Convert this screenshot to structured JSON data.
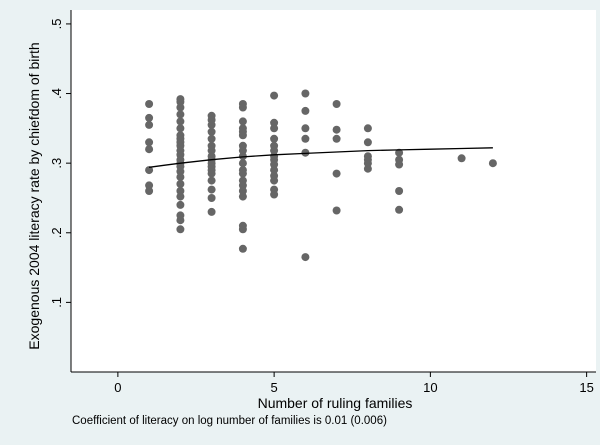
{
  "chart_data": {
    "type": "scatter",
    "xlabel": "Number of ruling families",
    "ylabel": "Exogenous 2004 literacy rate by chiefdom of birth",
    "xlim": [
      -1.5,
      15.3
    ],
    "ylim": [
      0,
      0.52
    ],
    "xticks": [
      0,
      5,
      10,
      15
    ],
    "yticks": [
      0.1,
      0.2,
      0.3,
      0.4,
      0.5
    ],
    "xtick_labels": [
      "0",
      "5",
      "10",
      "15"
    ],
    "ytick_labels": [
      ".1",
      ".2",
      ".3",
      ".4",
      ".5"
    ],
    "grid": false,
    "point_color": "#666666",
    "line_color": "#000000",
    "background_outer": "#eaf2f3",
    "background_plot": "#ffffff",
    "note": "Coefficient of literacy on log number of families is 0.01 (0.006)",
    "series": [
      {
        "type": "scatter",
        "points": [
          [
            1,
            0.385
          ],
          [
            1,
            0.365
          ],
          [
            1,
            0.355
          ],
          [
            1,
            0.33
          ],
          [
            1,
            0.32
          ],
          [
            1,
            0.29
          ],
          [
            1,
            0.268
          ],
          [
            1,
            0.26
          ],
          [
            2,
            0.392
          ],
          [
            2,
            0.388
          ],
          [
            2,
            0.38
          ],
          [
            2,
            0.37
          ],
          [
            2,
            0.36
          ],
          [
            2,
            0.35
          ],
          [
            2,
            0.34
          ],
          [
            2,
            0.335
          ],
          [
            2,
            0.33
          ],
          [
            2,
            0.325
          ],
          [
            2,
            0.318
          ],
          [
            2,
            0.312
          ],
          [
            2,
            0.305
          ],
          [
            2,
            0.3
          ],
          [
            2,
            0.295
          ],
          [
            2,
            0.288
          ],
          [
            2,
            0.28
          ],
          [
            2,
            0.27
          ],
          [
            2,
            0.26
          ],
          [
            2,
            0.252
          ],
          [
            2,
            0.24
          ],
          [
            2,
            0.225
          ],
          [
            2,
            0.218
          ],
          [
            2,
            0.205
          ],
          [
            3,
            0.368
          ],
          [
            3,
            0.362
          ],
          [
            3,
            0.355
          ],
          [
            3,
            0.345
          ],
          [
            3,
            0.335
          ],
          [
            3,
            0.325
          ],
          [
            3,
            0.318
          ],
          [
            3,
            0.31
          ],
          [
            3,
            0.305
          ],
          [
            3,
            0.3
          ],
          [
            3,
            0.295
          ],
          [
            3,
            0.29
          ],
          [
            3,
            0.285
          ],
          [
            3,
            0.275
          ],
          [
            3,
            0.262
          ],
          [
            3,
            0.25
          ],
          [
            3,
            0.23
          ],
          [
            4,
            0.385
          ],
          [
            4,
            0.38
          ],
          [
            4,
            0.36
          ],
          [
            4,
            0.35
          ],
          [
            4,
            0.345
          ],
          [
            4,
            0.34
          ],
          [
            4,
            0.325
          ],
          [
            4,
            0.318
          ],
          [
            4,
            0.31
          ],
          [
            4,
            0.3
          ],
          [
            4,
            0.29
          ],
          [
            4,
            0.285
          ],
          [
            4,
            0.275
          ],
          [
            4,
            0.268
          ],
          [
            4,
            0.26
          ],
          [
            4,
            0.252
          ],
          [
            4,
            0.21
          ],
          [
            4,
            0.205
          ],
          [
            4,
            0.177
          ],
          [
            5,
            0.397
          ],
          [
            5,
            0.358
          ],
          [
            5,
            0.35
          ],
          [
            5,
            0.335
          ],
          [
            5,
            0.325
          ],
          [
            5,
            0.318
          ],
          [
            5,
            0.31
          ],
          [
            5,
            0.305
          ],
          [
            5,
            0.298
          ],
          [
            5,
            0.29
          ],
          [
            5,
            0.282
          ],
          [
            5,
            0.275
          ],
          [
            5,
            0.262
          ],
          [
            5,
            0.255
          ],
          [
            6,
            0.4
          ],
          [
            6,
            0.375
          ],
          [
            6,
            0.35
          ],
          [
            6,
            0.335
          ],
          [
            6,
            0.315
          ],
          [
            6,
            0.165
          ],
          [
            7,
            0.385
          ],
          [
            7,
            0.348
          ],
          [
            7,
            0.335
          ],
          [
            7,
            0.285
          ],
          [
            7,
            0.232
          ],
          [
            8,
            0.35
          ],
          [
            8,
            0.33
          ],
          [
            8,
            0.31
          ],
          [
            8,
            0.305
          ],
          [
            8,
            0.3
          ],
          [
            8,
            0.292
          ],
          [
            9,
            0.315
          ],
          [
            9,
            0.305
          ],
          [
            9,
            0.298
          ],
          [
            9,
            0.26
          ],
          [
            9,
            0.233
          ],
          [
            11,
            0.307
          ],
          [
            12,
            0.3
          ]
        ]
      },
      {
        "type": "line",
        "points": [
          [
            1,
            0.294
          ],
          [
            1.5,
            0.297
          ],
          [
            2,
            0.3
          ],
          [
            3,
            0.305
          ],
          [
            4,
            0.309
          ],
          [
            5,
            0.312
          ],
          [
            6,
            0.314
          ],
          [
            7,
            0.316
          ],
          [
            8,
            0.318
          ],
          [
            9,
            0.319
          ],
          [
            10,
            0.32
          ],
          [
            11,
            0.321
          ],
          [
            12,
            0.322
          ]
        ]
      }
    ]
  }
}
